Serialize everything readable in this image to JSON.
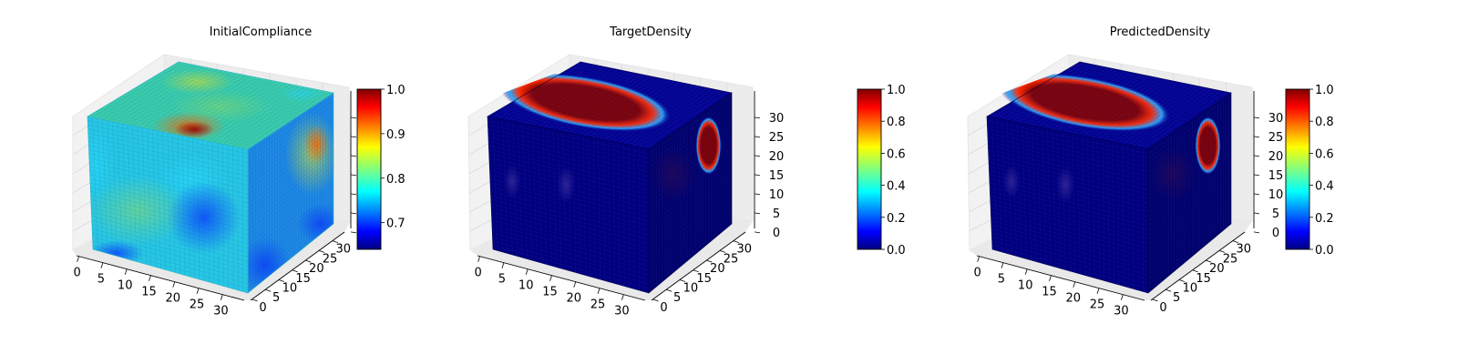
{
  "figure": {
    "panels": [
      {
        "title": "InitialCompliance",
        "x_ticks": [
          "0",
          "5",
          "10",
          "15",
          "20",
          "25",
          "30"
        ],
        "y_ticks": [
          "0",
          "5",
          "10",
          "15",
          "20",
          "25",
          "30"
        ],
        "z_ticks": [
          "",
          "",
          "",
          "",
          "",
          "",
          ""
        ],
        "colorbar_ticks": [
          "0.7",
          "0.8",
          "0.9",
          "1.0"
        ]
      },
      {
        "title": "TargetDensity",
        "x_ticks": [
          "0",
          "5",
          "10",
          "15",
          "20",
          "25",
          "30"
        ],
        "y_ticks": [
          "0",
          "5",
          "10",
          "15",
          "20",
          "25",
          "30"
        ],
        "z_ticks": [
          "0",
          "5",
          "10",
          "15",
          "20",
          "25",
          "30"
        ],
        "colorbar_ticks": [
          "0.0",
          "0.2",
          "0.4",
          "0.6",
          "0.8",
          "1.0"
        ]
      },
      {
        "title": "PredictedDensity",
        "x_ticks": [
          "0",
          "5",
          "10",
          "15",
          "20",
          "25",
          "30"
        ],
        "y_ticks": [
          "0",
          "5",
          "10",
          "15",
          "20",
          "25",
          "30"
        ],
        "z_ticks": [
          "0",
          "5",
          "10",
          "15",
          "20",
          "25",
          "30"
        ],
        "colorbar_ticks": [
          "0.0",
          "0.2",
          "0.4",
          "0.6",
          "0.8",
          "1.0"
        ]
      }
    ]
  },
  "chart_data": [
    {
      "type": "heatmap",
      "title": "InitialCompliance",
      "xlim": [
        0,
        32
      ],
      "ylim": [
        0,
        32
      ],
      "zlim": [
        0,
        32
      ],
      "x_ticks": [
        0,
        5,
        10,
        15,
        20,
        25,
        30
      ],
      "y_ticks": [
        0,
        5,
        10,
        15,
        20,
        25,
        30
      ],
      "colormap": "jet",
      "colorbar": {
        "min": 0.64,
        "max": 1.0,
        "ticks": [
          0.7,
          0.8,
          0.9,
          1.0
        ]
      },
      "colormap_stops": [
        "#00007f",
        "#0000ff",
        "#00ffff",
        "#ffff00",
        "#ff0000",
        "#7f0000"
      ],
      "grid": true,
      "legend": "right",
      "features": [
        {
          "face": "top",
          "u": 0.2,
          "v": 0.8,
          "value": 1.0,
          "size": 0.25
        },
        {
          "face": "front",
          "u": 0.3,
          "v": 0.7,
          "value": 0.82,
          "size": 0.4
        },
        {
          "face": "right",
          "u": 0.75,
          "v": 0.3,
          "value": 0.88,
          "size": 0.3
        }
      ]
    },
    {
      "type": "heatmap",
      "title": "TargetDensity",
      "xlim": [
        0,
        32
      ],
      "ylim": [
        0,
        32
      ],
      "zlim": [
        0,
        32
      ],
      "x_ticks": [
        0,
        5,
        10,
        15,
        20,
        25,
        30
      ],
      "y_ticks": [
        0,
        5,
        10,
        15,
        20,
        25,
        30
      ],
      "z_ticks": [
        0,
        5,
        10,
        15,
        20,
        25,
        30
      ],
      "colormap": "jet",
      "colorbar": {
        "min": 0.0,
        "max": 1.0,
        "ticks": [
          0.0,
          0.2,
          0.4,
          0.6,
          0.8,
          1.0
        ]
      },
      "colormap_stops": [
        "#00007f",
        "#0000ff",
        "#00ffff",
        "#ffff00",
        "#ff0000",
        "#7f0000"
      ],
      "grid": true,
      "legend": "right",
      "features": [
        {
          "face": "top",
          "shape": "ellipse",
          "value": 1.0
        },
        {
          "face": "right",
          "shape": "ellipse",
          "value": 1.0
        }
      ]
    },
    {
      "type": "heatmap",
      "title": "PredictedDensity",
      "xlim": [
        0,
        32
      ],
      "ylim": [
        0,
        32
      ],
      "zlim": [
        0,
        32
      ],
      "x_ticks": [
        0,
        5,
        10,
        15,
        20,
        25,
        30
      ],
      "y_ticks": [
        0,
        5,
        10,
        15,
        20,
        25,
        30
      ],
      "z_ticks": [
        0,
        5,
        10,
        15,
        20,
        25,
        30
      ],
      "colormap": "jet",
      "colorbar": {
        "min": 0.0,
        "max": 1.0,
        "ticks": [
          0.0,
          0.2,
          0.4,
          0.6,
          0.8,
          1.0
        ]
      },
      "colormap_stops": [
        "#00007f",
        "#0000ff",
        "#00ffff",
        "#ffff00",
        "#ff0000",
        "#7f0000"
      ],
      "grid": true,
      "legend": "right",
      "features": [
        {
          "face": "top",
          "shape": "ellipse",
          "value": 1.0
        },
        {
          "face": "right",
          "shape": "ellipse",
          "value": 1.0
        }
      ]
    }
  ]
}
